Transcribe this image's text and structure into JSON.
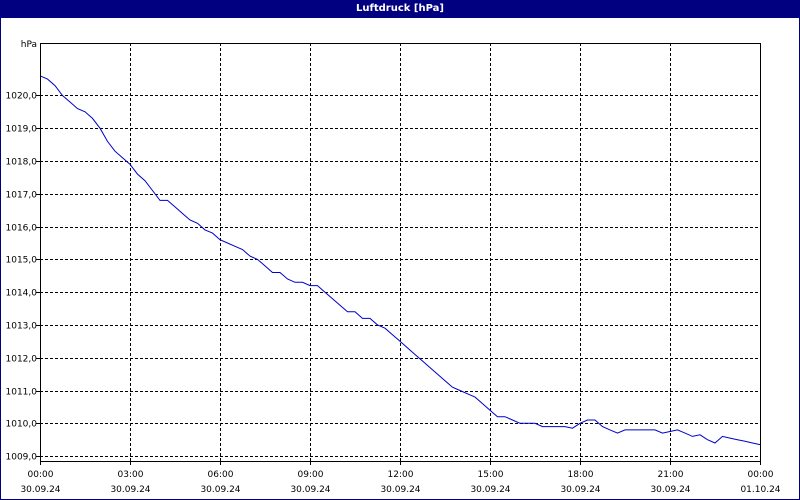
{
  "window": {
    "title": "Luftdruck [hPa]"
  },
  "chart_data": {
    "type": "line",
    "title": "Luftdruck [hPa]",
    "ylabel": "hPa",
    "ylim": [
      1008.85,
      1021.6
    ],
    "xlim_hours": [
      0,
      24
    ],
    "grid": true,
    "line_color": "#0000cc",
    "y_ticks": [
      "1009,0",
      "1010,0",
      "1011,0",
      "1012,0",
      "1013,0",
      "1014,0",
      "1015,0",
      "1016,0",
      "1017,0",
      "1018,0",
      "1019,0",
      "1020,0"
    ],
    "y_tick_values": [
      1009,
      1010,
      1011,
      1012,
      1013,
      1014,
      1015,
      1016,
      1017,
      1018,
      1019,
      1020
    ],
    "x_ticks": [
      {
        "time": "00:00",
        "date": "30.09.24"
      },
      {
        "time": "03:00",
        "date": "30.09.24"
      },
      {
        "time": "06:00",
        "date": "30.09.24"
      },
      {
        "time": "09:00",
        "date": "30.09.24"
      },
      {
        "time": "12:00",
        "date": "30.09.24"
      },
      {
        "time": "15:00",
        "date": "30.09.24"
      },
      {
        "time": "18:00",
        "date": "30.09.24"
      },
      {
        "time": "21:00",
        "date": "30.09.24"
      },
      {
        "time": "00:00",
        "date": "01.10.24"
      }
    ],
    "series": [
      {
        "name": "",
        "x": [
          0,
          0.25,
          0.5,
          0.75,
          1.0,
          1.25,
          1.5,
          1.75,
          2.0,
          2.25,
          2.5,
          2.75,
          3.0,
          3.25,
          3.5,
          3.75,
          4.0,
          4.25,
          4.5,
          4.75,
          5.0,
          5.25,
          5.5,
          5.75,
          6.0,
          6.25,
          6.5,
          6.75,
          7.0,
          7.25,
          7.5,
          7.75,
          8.0,
          8.25,
          8.5,
          8.75,
          9.0,
          9.25,
          9.5,
          9.75,
          10.0,
          10.25,
          10.5,
          10.75,
          11.0,
          11.25,
          11.5,
          11.75,
          12.0,
          12.25,
          12.5,
          12.75,
          13.0,
          13.25,
          13.5,
          13.75,
          14.0,
          14.25,
          14.5,
          14.75,
          15.0,
          15.25,
          15.5,
          15.75,
          16.0,
          16.25,
          16.5,
          16.75,
          17.0,
          17.25,
          17.5,
          17.75,
          18.0,
          18.25,
          18.5,
          18.75,
          19.0,
          19.25,
          19.5,
          19.75,
          20.0,
          20.25,
          20.5,
          20.75,
          21.0,
          21.25,
          21.5,
          21.75,
          22.0,
          22.25,
          22.5,
          22.75,
          23.0,
          23.25,
          23.5,
          23.75,
          24.0
        ],
        "values": [
          1020.6,
          1020.5,
          1020.3,
          1020.0,
          1019.8,
          1019.6,
          1019.5,
          1019.3,
          1019.0,
          1018.6,
          1018.3,
          1018.1,
          1017.9,
          1017.6,
          1017.4,
          1017.1,
          1016.8,
          1016.8,
          1016.6,
          1016.4,
          1016.2,
          1016.1,
          1015.9,
          1015.8,
          1015.6,
          1015.5,
          1015.4,
          1015.3,
          1015.1,
          1015.0,
          1014.8,
          1014.6,
          1014.6,
          1014.4,
          1014.3,
          1014.3,
          1014.2,
          1014.2,
          1014.0,
          1013.8,
          1013.6,
          1013.4,
          1013.4,
          1013.2,
          1013.2,
          1013.0,
          1012.9,
          1012.7,
          1012.5,
          1012.3,
          1012.1,
          1011.9,
          1011.7,
          1011.5,
          1011.3,
          1011.1,
          1011.0,
          1010.9,
          1010.8,
          1010.6,
          1010.4,
          1010.2,
          1010.2,
          1010.1,
          1010.0,
          1010.0,
          1010.0,
          1009.9,
          1009.9,
          1009.9,
          1009.9,
          1009.85,
          1010.0,
          1010.1,
          1010.1,
          1009.9,
          1009.8,
          1009.7,
          1009.8,
          1009.8,
          1009.8,
          1009.8,
          1009.8,
          1009.7,
          1009.75,
          1009.8,
          1009.7,
          1009.6,
          1009.65,
          1009.5,
          1009.4,
          1009.6,
          1009.55,
          1009.5,
          1009.45,
          1009.4,
          1009.35
        ]
      }
    ]
  }
}
